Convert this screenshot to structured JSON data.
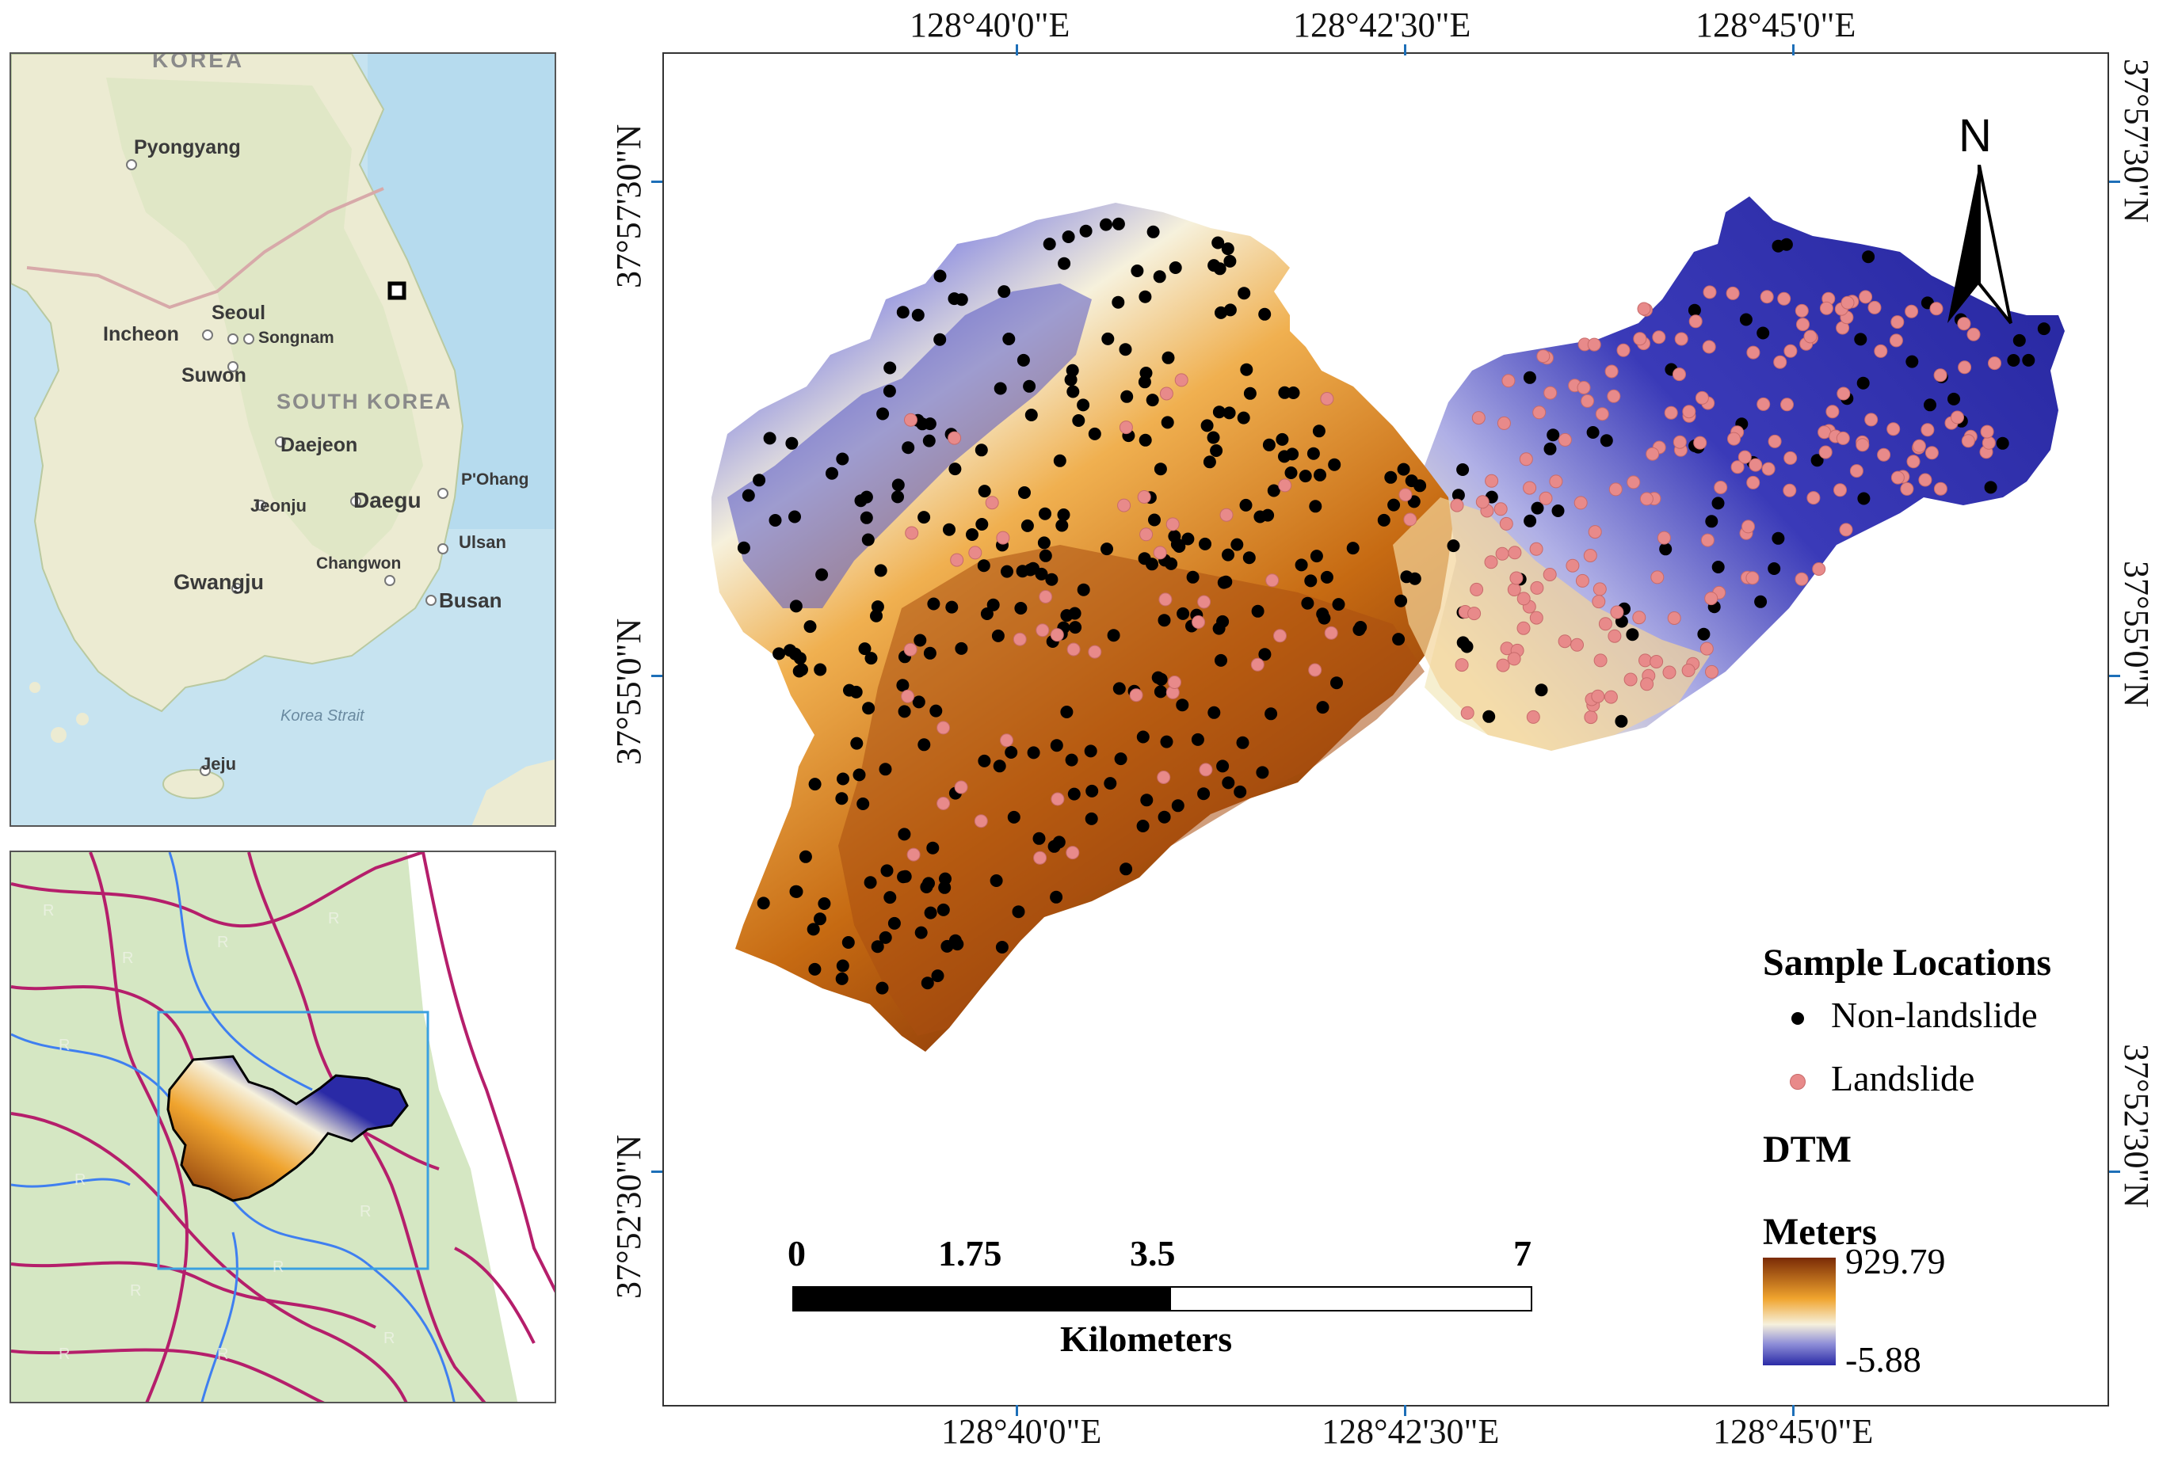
{
  "overview_map": {
    "labels": {
      "korea": "KOREA",
      "pyongyang": "Pyongyang",
      "seoul": "Seoul",
      "incheon": "Incheon",
      "songnam": "Songnam",
      "suwon": "Suwon",
      "south_korea": "SOUTH KOREA",
      "daejeon": "Daejeon",
      "pohang": "P'Ohang",
      "jeonju": "Jeonju",
      "daegu": "Daegu",
      "ulsan": "Ulsan",
      "gwangju": "Gwangju",
      "changwon": "Changwon",
      "busan": "Busan",
      "korea_strait": "Korea Strait",
      "jeju": "Jeju"
    }
  },
  "main_map": {
    "top_coords": [
      "128°40'0\"E",
      "128°42'30\"E",
      "128°45'0\"E"
    ],
    "bottom_coords": [
      "128°40'0\"E",
      "128°42'30\"E",
      "128°45'0\"E"
    ],
    "left_coords": [
      "37°57'30\"N",
      "37°55'0\"N",
      "37°52'30\"N"
    ],
    "right_coords": [
      "37°57'30\"N",
      "37°55'0\"N",
      "37°52'30\"N"
    ],
    "north_arrow": "N",
    "legend": {
      "title": "Sample Locations",
      "non_landslide": "Non-landslide",
      "landslide": "Landslide",
      "dtm_title": "DTM",
      "dtm_unit": "Meters",
      "dtm_max": "929.79",
      "dtm_min": "-5.88"
    },
    "scale_bar": {
      "labels": [
        "0",
        "1.75",
        "3.5",
        "7"
      ],
      "unit": "Kilometers"
    }
  },
  "colors": {
    "non_landslide": "#000000",
    "landslide": "#e88a8a",
    "dtm_high": "#7a2b06",
    "dtm_mid_high": "#f0a42e",
    "dtm_mid": "#f5f0d8",
    "dtm_low": "#2a2aa6"
  }
}
